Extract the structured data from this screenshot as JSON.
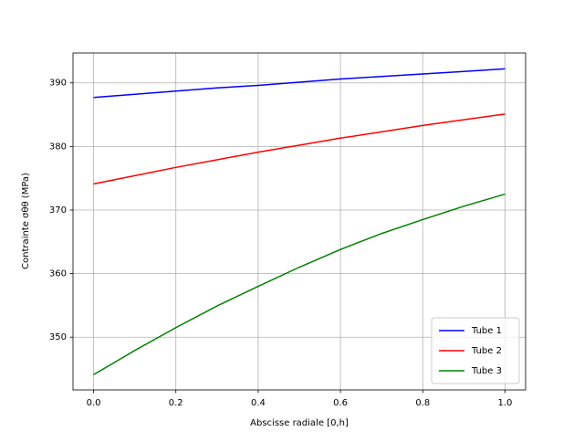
{
  "chart_data": {
    "type": "line",
    "x_label": "Abscisse radiale [0,h]",
    "y_label": "Contrainte σθθ (MPa)",
    "x": [
      0,
      0.1,
      0.2,
      0.3,
      0.4,
      0.5,
      0.6,
      0.7,
      0.8,
      0.9,
      1.0
    ],
    "series": [
      {
        "name": "Tube 1",
        "color": "#0000ff",
        "values": [
          387.7,
          388.2,
          388.7,
          389.2,
          389.6,
          390.1,
          390.6,
          391.0,
          391.4,
          391.8,
          392.2
        ]
      },
      {
        "name": "Tube 2",
        "color": "#ff0000",
        "values": [
          374.1,
          375.4,
          376.7,
          377.9,
          379.1,
          380.2,
          381.3,
          382.3,
          383.3,
          384.2,
          385.1
        ]
      },
      {
        "name": "Tube 3",
        "color": "#008000",
        "values": [
          344.1,
          347.9,
          351.5,
          354.9,
          358.0,
          361.0,
          363.8,
          366.3,
          368.5,
          370.6,
          372.5
        ]
      }
    ],
    "xlim": [
      -0.05,
      1.05
    ],
    "xticks": [
      {
        "value": 0,
        "label": "0.0"
      },
      0.2,
      0.4,
      0.6,
      0.8,
      {
        "value": 1,
        "label": "1.0"
      }
    ],
    "ylim": [
      341.7,
      394.7
    ],
    "yticks": [
      350,
      360,
      370,
      380,
      390
    ],
    "grid": true,
    "legend": "lower right"
  }
}
